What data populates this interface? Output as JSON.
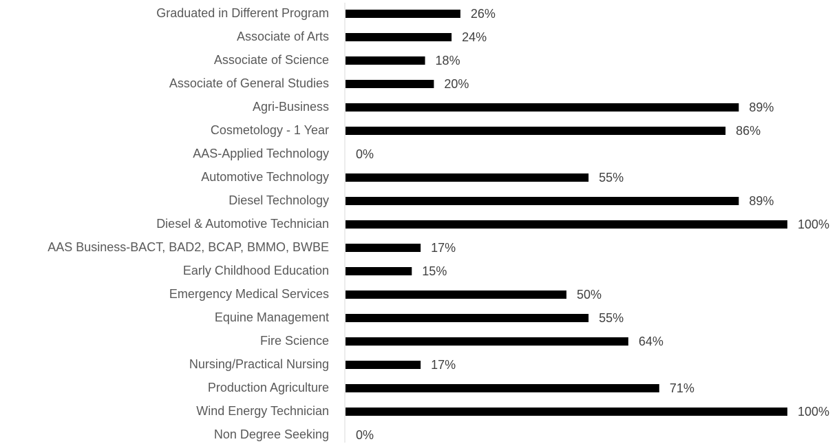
{
  "chart_data": {
    "type": "bar",
    "orientation": "horizontal",
    "categories": [
      "Graduated in Different Program",
      "Associate of Arts",
      "Associate of Science",
      "Associate of General Studies",
      "Agri-Business",
      "Cosmetology - 1 Year",
      "AAS-Applied Technology",
      "Automotive Technology",
      "Diesel Technology",
      "Diesel & Automotive Technician",
      "AAS Business-BACT, BAD2, BCAP, BMMO, BWBE",
      "Early Childhood Education",
      "Emergency Medical Services",
      "Equine Management",
      "Fire Science",
      "Nursing/Practical Nursing",
      "Production Agriculture",
      "Wind Energy Technician",
      "Non Degree Seeking"
    ],
    "values": [
      26,
      24,
      18,
      20,
      89,
      86,
      0,
      55,
      89,
      100,
      17,
      15,
      50,
      55,
      64,
      17,
      71,
      100,
      0
    ],
    "value_labels": [
      "26%",
      "24%",
      "18%",
      "20%",
      "89%",
      "86%",
      "0%",
      "55%",
      "89%",
      "100%",
      "17%",
      "15%",
      "50%",
      "55%",
      "64%",
      "17%",
      "71%",
      "100%",
      "0%"
    ],
    "color": "#000000",
    "xlim": [
      0,
      100
    ]
  }
}
